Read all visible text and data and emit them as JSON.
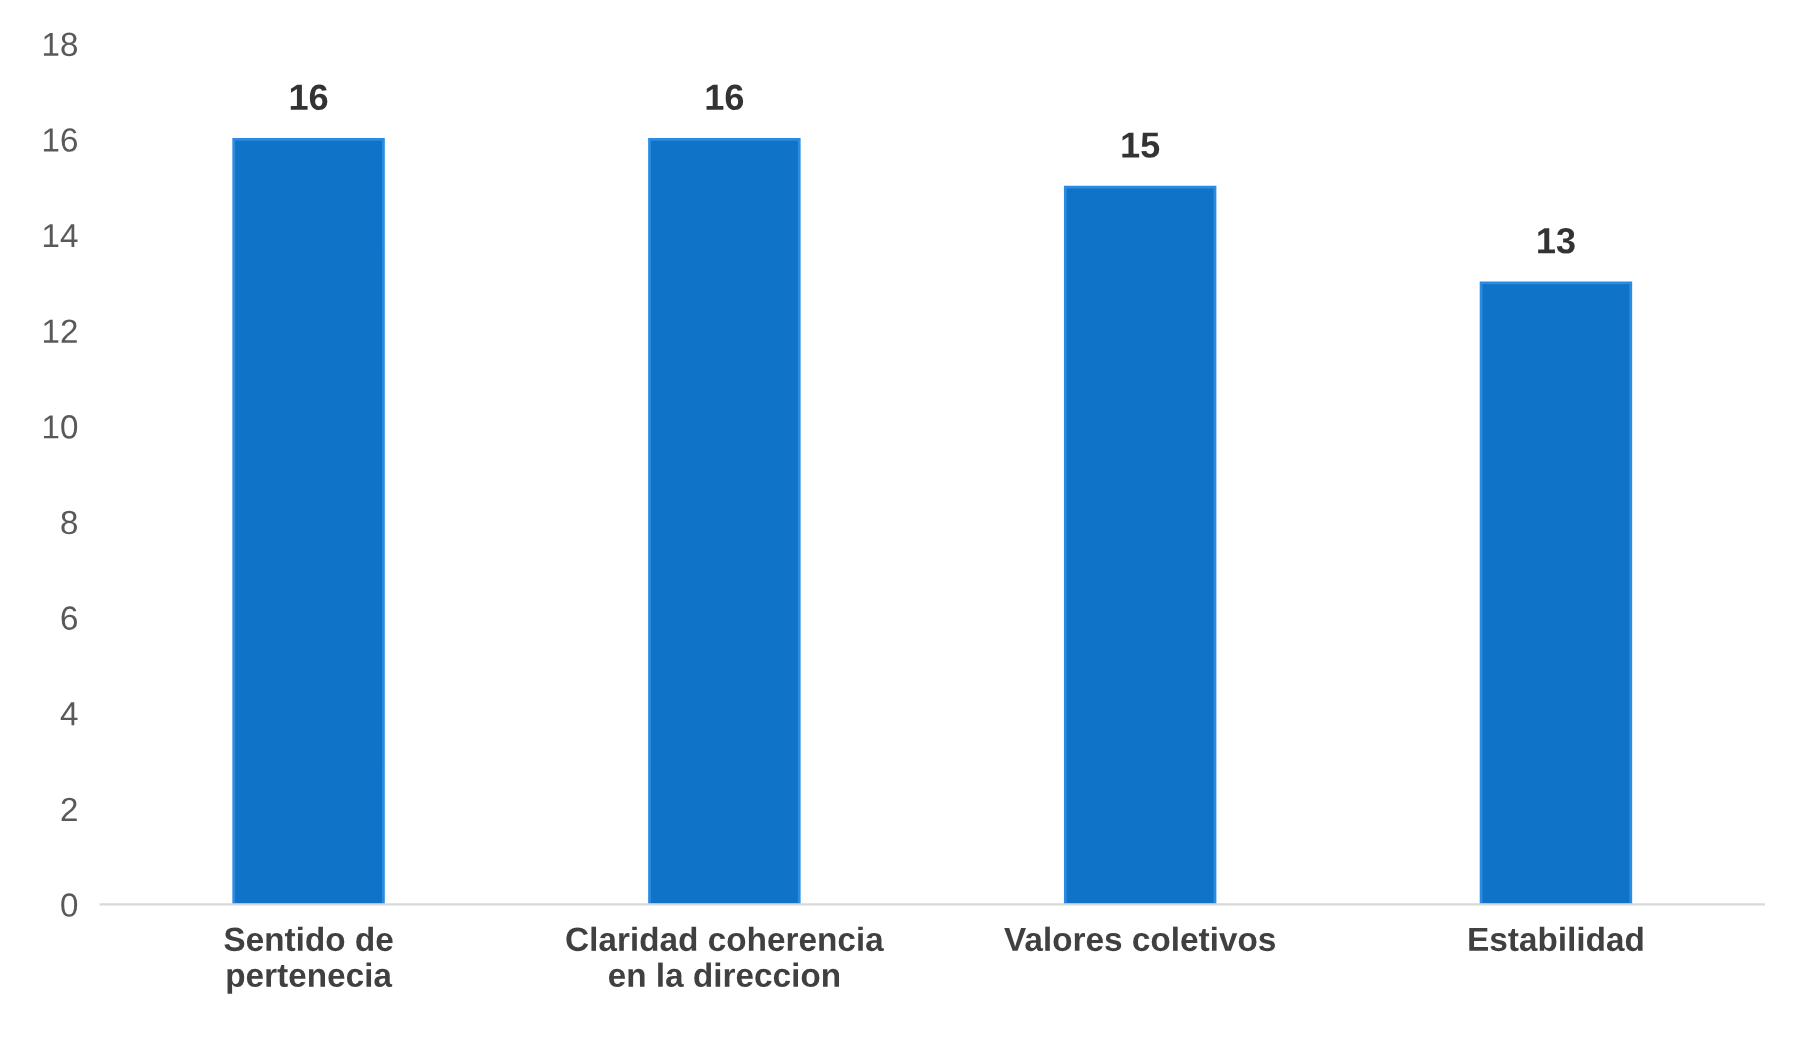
{
  "chart_data": {
    "type": "bar",
    "categories": [
      "Sentido de\npertenecia",
      "Claridad coherencia\nen la direccion",
      "Valores coletivos",
      "Estabilidad"
    ],
    "values": [
      16,
      16,
      15,
      13
    ],
    "color": "#0f74c8",
    "ylim": [
      0,
      18
    ],
    "yticks": [
      0,
      2,
      4,
      6,
      8,
      10,
      12,
      14,
      16,
      18
    ],
    "data_labels": true,
    "grid": false,
    "legend": false
  }
}
